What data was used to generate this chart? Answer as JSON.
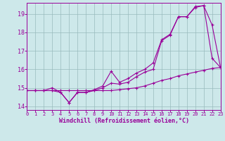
{
  "xlabel": "Windchill (Refroidissement éolien,°C)",
  "xlim": [
    0,
    23
  ],
  "ylim": [
    13.8,
    19.6
  ],
  "yticks": [
    14,
    15,
    16,
    17,
    18,
    19
  ],
  "xticks": [
    0,
    1,
    2,
    3,
    4,
    5,
    6,
    7,
    8,
    9,
    10,
    11,
    12,
    13,
    14,
    15,
    16,
    17,
    18,
    19,
    20,
    21,
    22,
    23
  ],
  "bg_color": "#cde8ea",
  "grid_color": "#99bbbd",
  "line_color": "#990099",
  "line1_x": [
    0,
    1,
    2,
    3,
    4,
    5,
    6,
    7,
    8,
    9,
    10,
    11,
    12,
    13,
    14,
    15,
    16,
    17,
    18,
    19,
    20,
    21,
    22,
    23
  ],
  "line1_y": [
    14.85,
    14.85,
    14.85,
    14.85,
    14.85,
    14.85,
    14.85,
    14.85,
    14.85,
    14.85,
    14.85,
    14.9,
    14.95,
    15.0,
    15.1,
    15.25,
    15.4,
    15.5,
    15.65,
    15.75,
    15.85,
    15.95,
    16.05,
    16.1
  ],
  "line2_x": [
    0,
    1,
    2,
    3,
    4,
    5,
    6,
    7,
    8,
    9,
    10,
    11,
    12,
    13,
    14,
    15,
    16,
    17,
    18,
    19,
    20,
    21,
    22,
    23
  ],
  "line2_y": [
    14.85,
    14.85,
    14.85,
    15.0,
    14.75,
    14.2,
    14.75,
    14.75,
    14.9,
    15.1,
    15.9,
    15.3,
    15.5,
    15.8,
    16.0,
    16.35,
    17.6,
    17.9,
    18.85,
    18.85,
    19.35,
    19.45,
    18.4,
    16.1
  ],
  "line3_x": [
    0,
    1,
    2,
    3,
    4,
    5,
    6,
    7,
    8,
    9,
    10,
    11,
    12,
    13,
    14,
    15,
    16,
    17,
    18,
    19,
    20,
    21,
    22,
    23
  ],
  "line3_y": [
    14.85,
    14.85,
    14.85,
    14.85,
    14.75,
    14.2,
    14.75,
    14.75,
    14.85,
    15.0,
    15.25,
    15.2,
    15.3,
    15.6,
    15.85,
    16.0,
    17.55,
    17.85,
    18.85,
    18.85,
    19.4,
    19.45,
    16.6,
    16.1
  ]
}
